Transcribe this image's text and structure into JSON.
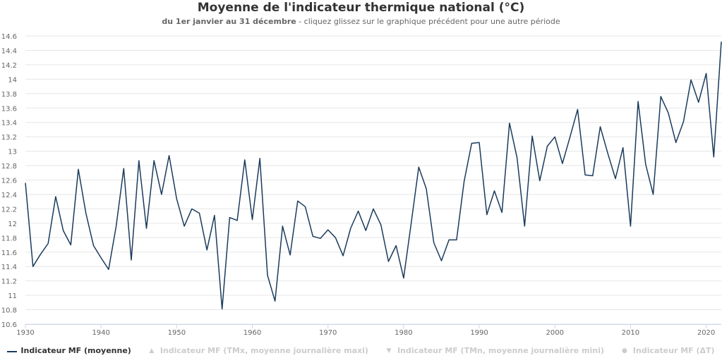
{
  "title": "Moyenne de l'indicateur thermique national (°C)",
  "subtitle": {
    "bold": "du 1er janvier au 31 décembre",
    "rest": " - cliquez glissez sur le graphique précédent pour une autre période"
  },
  "colors": {
    "series": "#1a3b5c",
    "grid": "#e6e6e6",
    "axis": "#ccd6eb",
    "tick_text": "#666666",
    "inactive": "#cccccc"
  },
  "legend": [
    {
      "label": "Indicateur MF (moyenne)",
      "active": true,
      "symbol": "line"
    },
    {
      "label": "Indicateur MF (TMx, moyenne journalière maxi)",
      "active": false,
      "symbol": "▲"
    },
    {
      "label": "Indicateur MF (TMn, moyenne journalière mini)",
      "active": false,
      "symbol": "▼"
    },
    {
      "label": "Indicateur MF (ΔT)",
      "active": false,
      "symbol": "●"
    }
  ],
  "chart_data": {
    "type": "line",
    "title": "Moyenne de l'indicateur thermique national (°C)",
    "xlabel": "",
    "ylabel": "",
    "xlim": [
      1930,
      2022
    ],
    "ylim": [
      10.6,
      14.6
    ],
    "x_ticks": [
      "1930",
      "1940",
      "1950",
      "1960",
      "1970",
      "1980",
      "1990",
      "2000",
      "2010",
      "2020"
    ],
    "y_ticks": [
      "10.6",
      "10.8",
      "11",
      "11.2",
      "11.4",
      "11.6",
      "11.8",
      "12",
      "12.2",
      "12.4",
      "12.6",
      "12.8",
      "13",
      "13.2",
      "13.4",
      "13.6",
      "13.8",
      "14",
      "14.2",
      "14.4",
      "14.6"
    ],
    "grid": true,
    "legend_position": "bottom",
    "series": [
      {
        "name": "Indicateur MF (moyenne)",
        "x": [
          1930,
          1931,
          1932,
          1933,
          1934,
          1935,
          1936,
          1937,
          1938,
          1939,
          1940,
          1941,
          1942,
          1943,
          1944,
          1945,
          1946,
          1947,
          1948,
          1949,
          1950,
          1951,
          1952,
          1953,
          1954,
          1955,
          1956,
          1957,
          1958,
          1959,
          1960,
          1961,
          1962,
          1963,
          1964,
          1965,
          1966,
          1967,
          1968,
          1969,
          1970,
          1971,
          1972,
          1973,
          1974,
          1975,
          1976,
          1977,
          1978,
          1979,
          1980,
          1981,
          1982,
          1983,
          1984,
          1985,
          1986,
          1987,
          1988,
          1989,
          1990,
          1991,
          1992,
          1993,
          1994,
          1995,
          1996,
          1997,
          1998,
          1999,
          2000,
          2001,
          2002,
          2003,
          2004,
          2005,
          2006,
          2007,
          2008,
          2009,
          2010,
          2011,
          2012,
          2013,
          2014,
          2015,
          2016,
          2017,
          2018,
          2019,
          2020,
          2021,
          2022
        ],
        "values": [
          12.56,
          11.4,
          11.57,
          11.72,
          12.37,
          11.9,
          11.7,
          12.75,
          12.14,
          11.69,
          11.52,
          11.36,
          11.96,
          12.76,
          11.49,
          12.87,
          11.93,
          12.87,
          12.4,
          12.94,
          12.34,
          11.96,
          12.2,
          12.14,
          11.63,
          12.11,
          10.81,
          12.08,
          12.04,
          12.88,
          12.05,
          12.9,
          11.28,
          10.92,
          11.96,
          11.56,
          12.31,
          12.23,
          11.82,
          11.79,
          11.91,
          11.8,
          11.55,
          11.93,
          12.17,
          11.9,
          12.2,
          11.98,
          11.47,
          11.69,
          11.24,
          12.0,
          12.78,
          12.48,
          11.73,
          11.48,
          11.77,
          11.77,
          12.58,
          13.11,
          13.12,
          12.12,
          12.45,
          12.15,
          13.39,
          12.91,
          11.96,
          13.21,
          12.59,
          13.07,
          13.2,
          12.83,
          13.2,
          13.58,
          12.67,
          12.66,
          13.34,
          12.97,
          12.62,
          13.05,
          11.96,
          13.69,
          12.82,
          12.4,
          13.76,
          13.53,
          13.12,
          13.41,
          13.99,
          13.68,
          14.08,
          12.92,
          14.52
        ]
      }
    ]
  }
}
